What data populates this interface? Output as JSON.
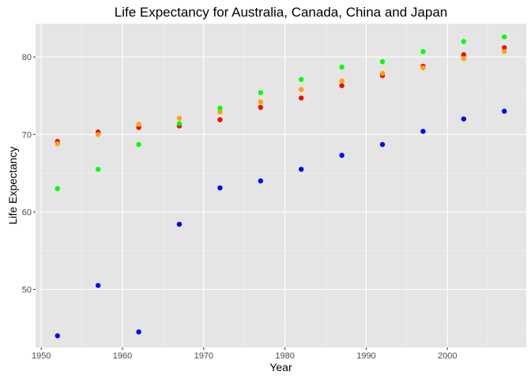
{
  "chart_data": {
    "type": "scatter",
    "title": "Life Expectancy for Australia, Canada, China and Japan",
    "xlabel": "Year",
    "ylabel": "Life Expectancy",
    "xlim": [
      1949.3,
      2009.7
    ],
    "ylim": [
      42.5,
      84.3
    ],
    "x_ticks": [
      1950,
      1960,
      1970,
      1980,
      1990,
      2000
    ],
    "y_ticks": [
      50,
      60,
      70,
      80
    ],
    "grid": true,
    "background": "#e5e5e5",
    "x": [
      1952,
      1957,
      1962,
      1967,
      1972,
      1977,
      1982,
      1987,
      1992,
      1997,
      2002,
      2007
    ],
    "series": [
      {
        "color": "#ff0000",
        "values": [
          69.1,
          70.3,
          70.9,
          71.1,
          71.9,
          73.5,
          74.7,
          76.3,
          77.6,
          78.8,
          80.3,
          81.2
        ]
      },
      {
        "color": "#ffa500",
        "values": [
          68.8,
          70.0,
          71.3,
          72.1,
          72.9,
          74.2,
          75.8,
          76.9,
          77.9,
          78.6,
          79.8,
          80.7
        ]
      },
      {
        "color": "#0000ff",
        "values": [
          44.0,
          50.5,
          44.5,
          58.4,
          63.1,
          64.0,
          65.5,
          67.3,
          68.7,
          70.4,
          72.0,
          73.0
        ]
      },
      {
        "color": "#00ff00",
        "values": [
          63.0,
          65.5,
          68.7,
          71.4,
          73.4,
          75.4,
          77.1,
          78.7,
          79.4,
          80.7,
          82.0,
          82.6
        ]
      }
    ]
  }
}
